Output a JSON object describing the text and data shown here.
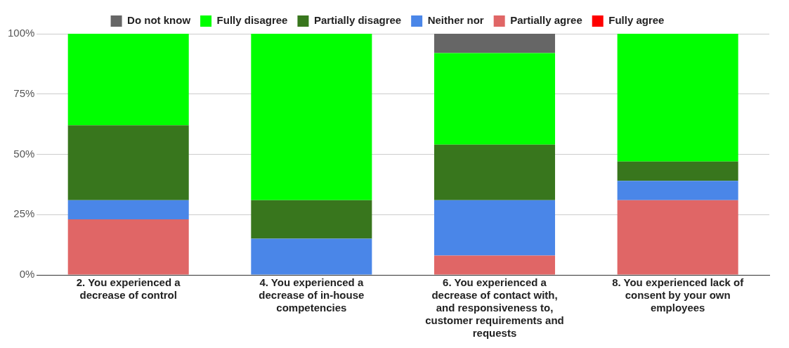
{
  "chart_data": {
    "type": "bar",
    "stacked": true,
    "categories": [
      "2. You experienced a decrease of control",
      "4. You experienced a decrease of in-house competencies",
      "6. You experienced a decrease of contact with, and responsiveness to, customer requirements and requests",
      "8. You experienced lack of consent by your own employees"
    ],
    "series": [
      {
        "name": "Fully agree",
        "color": "#ff0000",
        "values": [
          0,
          0,
          0,
          0
        ]
      },
      {
        "name": "Partially agree",
        "color": "#e06666",
        "values": [
          23,
          0,
          8,
          31
        ]
      },
      {
        "name": "Neither nor",
        "color": "#4a86e8",
        "values": [
          8,
          15,
          23,
          8
        ]
      },
      {
        "name": "Partially disagree",
        "color": "#38761d",
        "values": [
          31,
          16,
          23,
          8
        ]
      },
      {
        "name": "Fully disagree",
        "color": "#00ff00",
        "values": [
          38,
          69,
          38,
          53
        ]
      },
      {
        "name": "Do not know",
        "color": "#666666",
        "values": [
          0,
          0,
          8,
          0
        ]
      }
    ],
    "ylim": [
      0,
      100
    ],
    "yticks": [
      {
        "value": 0,
        "label": "0%"
      },
      {
        "value": 25,
        "label": "25%"
      },
      {
        "value": 50,
        "label": "50%"
      },
      {
        "value": 75,
        "label": "75%"
      },
      {
        "value": 100,
        "label": "100%"
      }
    ],
    "grid": "y",
    "legend": "top"
  }
}
